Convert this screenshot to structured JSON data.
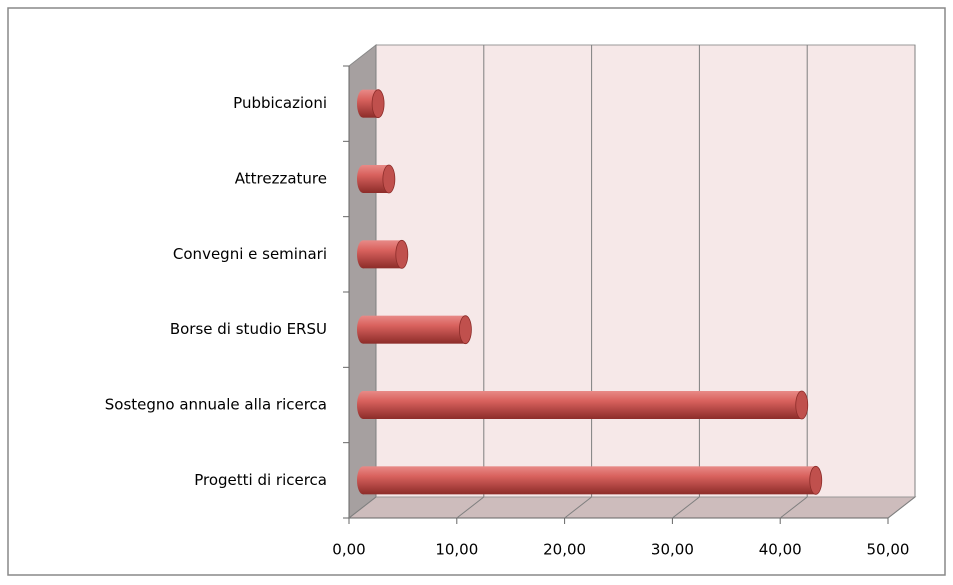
{
  "chart_data": {
    "type": "bar",
    "orientation": "horizontal",
    "categories": [
      "Pubbicazioni",
      "Attrezzature",
      "Convegni e seminari",
      "Borse di studio ERSU",
      "Sostegno annuale alla ricerca",
      "Progetti di ricerca"
    ],
    "values": [
      1.4,
      2.4,
      3.6,
      9.5,
      40.7,
      42
    ],
    "color": "#c0504d",
    "xlim": [
      0,
      50
    ],
    "xticks": [
      {
        "value": 0,
        "label": "0,00"
      },
      {
        "value": 10,
        "label": "10,00"
      },
      {
        "value": 20,
        "label": "20,00"
      },
      {
        "value": 30,
        "label": "30,00"
      },
      {
        "value": 40,
        "label": "40,00"
      },
      {
        "value": 50,
        "label": "50,00"
      }
    ],
    "grid": true
  }
}
